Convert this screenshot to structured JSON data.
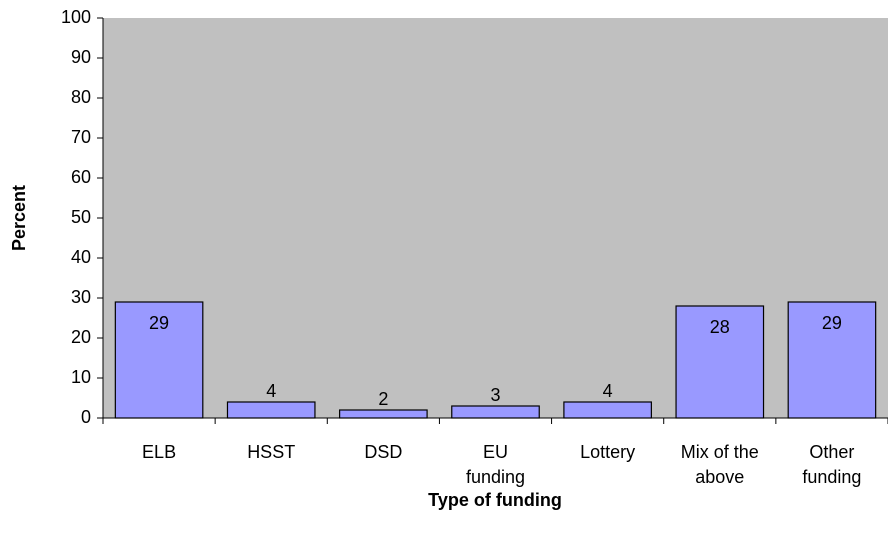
{
  "chart_data": {
    "type": "bar",
    "categories": [
      "ELB",
      "HSST",
      "DSD",
      "EU funding",
      "Lottery",
      "Mix of the above",
      "Other funding"
    ],
    "values": [
      29,
      4,
      2,
      3,
      4,
      28,
      29
    ],
    "color": "#9999ff",
    "background": "#c0c0c0",
    "ylim": [
      0,
      100
    ],
    "yticks": [
      0,
      10,
      20,
      30,
      40,
      50,
      60,
      70,
      80,
      90,
      100
    ],
    "x_label": "Type of funding",
    "y_label": "Percent",
    "grid": false
  }
}
